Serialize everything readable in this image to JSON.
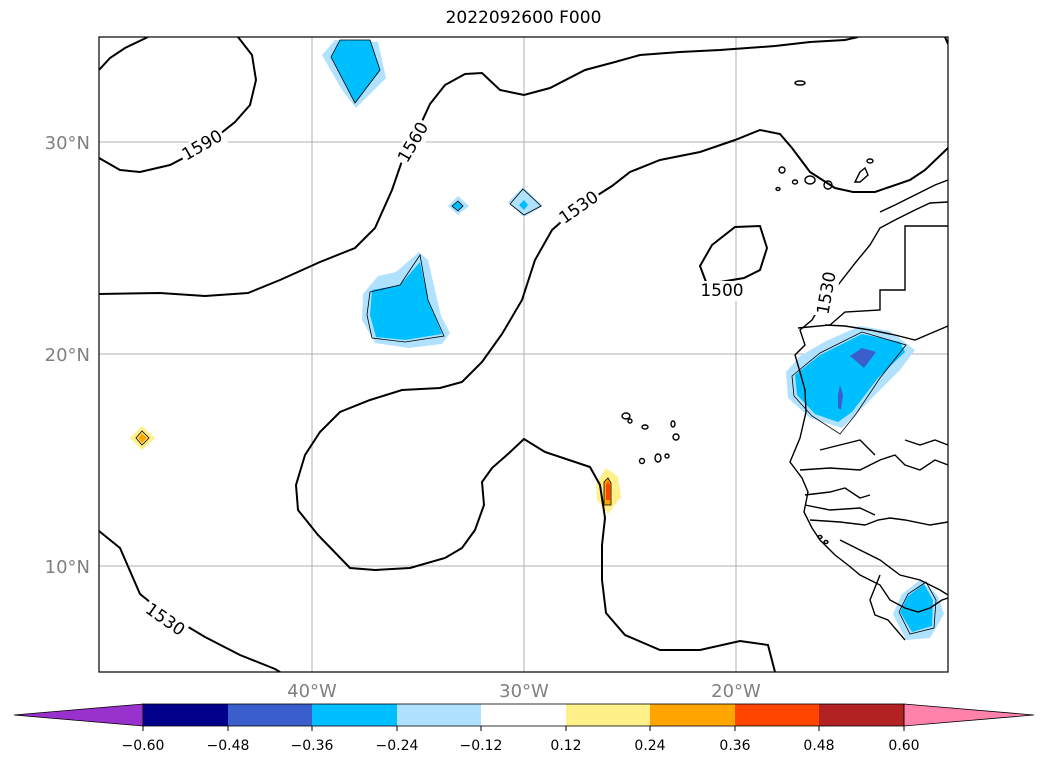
{
  "title": "2022092600 F000",
  "map": {
    "lat_labels": [
      "30°N",
      "20°N",
      "10°N"
    ],
    "lon_labels": [
      "40°W",
      "30°W",
      "20°W"
    ],
    "contour_labels": [
      "1590",
      "1560",
      "1530",
      "1500",
      "1530",
      "1530"
    ]
  },
  "colorbar": {
    "tick_labels": [
      "−0.60",
      "−0.48",
      "−0.36",
      "−0.24",
      "−0.12",
      "0.12",
      "0.24",
      "0.36",
      "0.48",
      "0.60"
    ],
    "colors": [
      "#9932cc",
      "#00008b",
      "#3a5fcd",
      "#00bfff",
      "#b0e2ff",
      "#ffffff",
      "#fff08a",
      "#ffa500",
      "#ff4500",
      "#b22222",
      "#ff82ab",
      "#ff82ab"
    ]
  }
}
